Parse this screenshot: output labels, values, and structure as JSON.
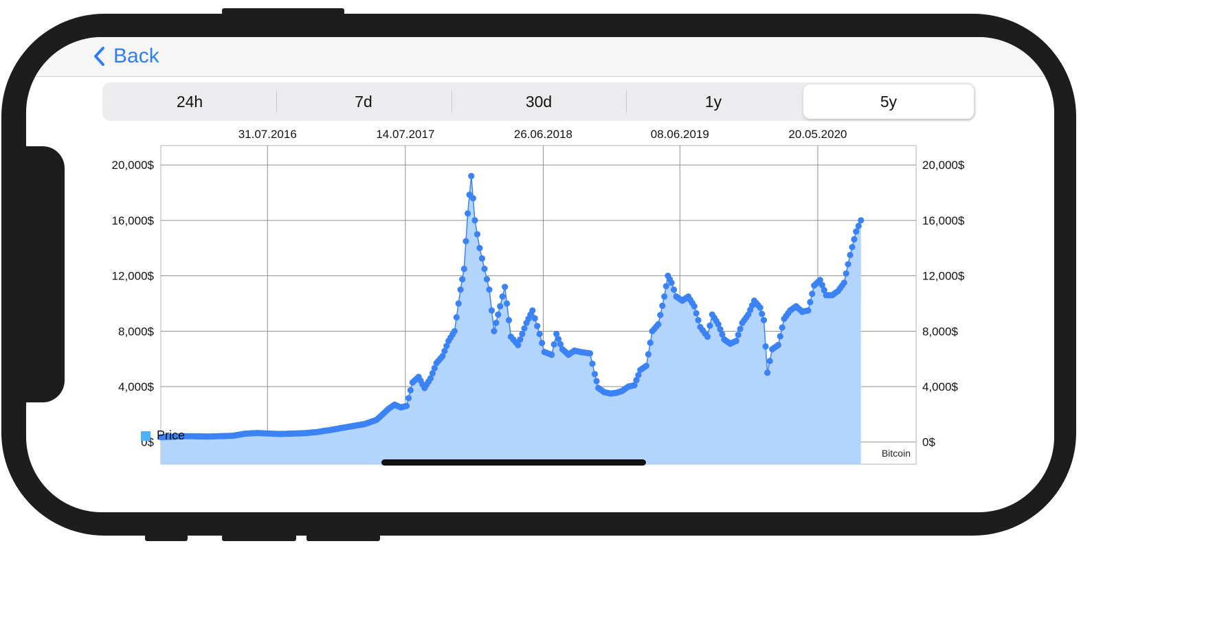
{
  "nav": {
    "back_label": "Back"
  },
  "tabs": [
    {
      "label": "24h",
      "selected": false
    },
    {
      "label": "7d",
      "selected": false
    },
    {
      "label": "30d",
      "selected": false
    },
    {
      "label": "1y",
      "selected": false
    },
    {
      "label": "5y",
      "selected": true
    }
  ],
  "chart_data": {
    "type": "area",
    "title": "",
    "xlabel": "",
    "ylabel": "",
    "watermark": "Bitcoin",
    "x_tick_labels": [
      "31.07.2016",
      "14.07.2017",
      "26.06.2018",
      "08.06.2019",
      "20.05.2020"
    ],
    "y_tick_labels": [
      "0$",
      "4,000$",
      "8,000$",
      "12,000$",
      "16,000$",
      "20,000$"
    ],
    "y_ticks": [
      0,
      4000,
      8000,
      12000,
      16000,
      20000
    ],
    "ylim": [
      -1600,
      21400
    ],
    "x_range_months": [
      0,
      63
    ],
    "x_tick_months": [
      8.9,
      20.4,
      31.9,
      43.3,
      54.8
    ],
    "grid": true,
    "legend": {
      "position": "bottom-left",
      "entries": [
        "Price"
      ]
    },
    "colors": {
      "line": "#3a82f5",
      "fill": "#b3d4fc",
      "legend": "#4db3f5",
      "grid": "#8e8e8e"
    },
    "series": [
      {
        "name": "Price",
        "x_unit": "months since start of visible range",
        "points": [
          [
            0,
            350
          ],
          [
            2,
            420
          ],
          [
            4,
            400
          ],
          [
            6,
            450
          ],
          [
            7,
            600
          ],
          [
            8,
            650
          ],
          [
            10,
            580
          ],
          [
            12,
            640
          ],
          [
            13,
            720
          ],
          [
            14,
            850
          ],
          [
            15,
            1000
          ],
          [
            16,
            1150
          ],
          [
            17,
            1300
          ],
          [
            18,
            1600
          ],
          [
            19,
            2400
          ],
          [
            19.5,
            2700
          ],
          [
            20,
            2500
          ],
          [
            20.5,
            2600
          ],
          [
            21,
            4300
          ],
          [
            21.5,
            4700
          ],
          [
            22,
            3900
          ],
          [
            22.5,
            4600
          ],
          [
            23,
            5700
          ],
          [
            23.5,
            6200
          ],
          [
            24,
            7300
          ],
          [
            24.5,
            8000
          ],
          [
            25,
            11000
          ],
          [
            25.3,
            12500
          ],
          [
            25.6,
            16500
          ],
          [
            25.9,
            19200
          ],
          [
            26.2,
            16000
          ],
          [
            26.6,
            14000
          ],
          [
            27,
            12500
          ],
          [
            27.4,
            11000
          ],
          [
            27.8,
            8000
          ],
          [
            28.3,
            9800
          ],
          [
            28.7,
            11200
          ],
          [
            29.2,
            7600
          ],
          [
            29.8,
            7000
          ],
          [
            30.5,
            8600
          ],
          [
            31,
            9500
          ],
          [
            31.6,
            7800
          ],
          [
            32,
            6500
          ],
          [
            32.6,
            6300
          ],
          [
            33,
            7800
          ],
          [
            33.5,
            6700
          ],
          [
            34,
            6300
          ],
          [
            34.5,
            6600
          ],
          [
            35,
            6500
          ],
          [
            35.8,
            6400
          ],
          [
            36.2,
            4900
          ],
          [
            36.5,
            3900
          ],
          [
            37,
            3600
          ],
          [
            37.5,
            3500
          ],
          [
            38,
            3550
          ],
          [
            38.5,
            3700
          ],
          [
            39,
            4000
          ],
          [
            39.5,
            4100
          ],
          [
            40,
            5200
          ],
          [
            40.5,
            5500
          ],
          [
            41,
            8000
          ],
          [
            41.5,
            8500
          ],
          [
            42,
            10500
          ],
          [
            42.3,
            12000
          ],
          [
            42.6,
            11500
          ],
          [
            43,
            10500
          ],
          [
            43.5,
            10200
          ],
          [
            44,
            10500
          ],
          [
            44.5,
            9800
          ],
          [
            45,
            8300
          ],
          [
            45.6,
            7600
          ],
          [
            46,
            9200
          ],
          [
            46.5,
            8500
          ],
          [
            47,
            7400
          ],
          [
            47.5,
            7100
          ],
          [
            48,
            7300
          ],
          [
            48.5,
            8600
          ],
          [
            49,
            9200
          ],
          [
            49.5,
            10200
          ],
          [
            50,
            9700
          ],
          [
            50.3,
            8800
          ],
          [
            50.6,
            5000
          ],
          [
            51,
            6700
          ],
          [
            51.5,
            7000
          ],
          [
            52,
            8900
          ],
          [
            52.5,
            9500
          ],
          [
            53,
            9800
          ],
          [
            53.5,
            9400
          ],
          [
            54,
            9500
          ],
          [
            54.5,
            11300
          ],
          [
            55,
            11700
          ],
          [
            55.5,
            10600
          ],
          [
            56,
            10600
          ],
          [
            56.5,
            10900
          ],
          [
            57,
            11500
          ],
          [
            57.5,
            13500
          ],
          [
            58,
            15200
          ],
          [
            58.4,
            16000
          ]
        ]
      }
    ]
  }
}
